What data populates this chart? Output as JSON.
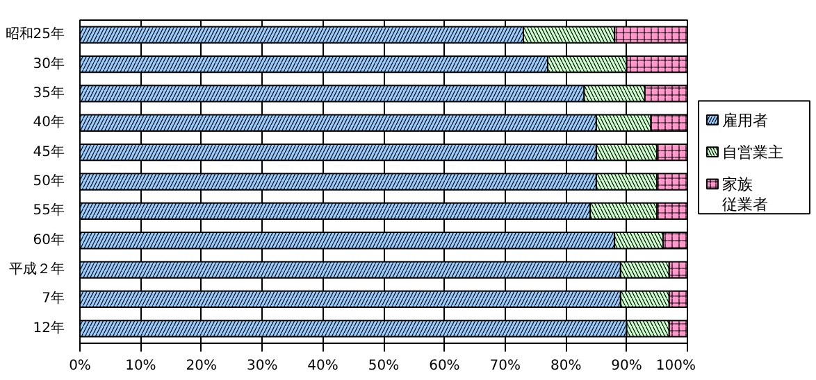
{
  "chart_data": {
    "type": "bar",
    "orientation": "horizontal",
    "stacked": true,
    "categories": [
      "昭和25年",
      "30年",
      "35年",
      "40年",
      "45年",
      "50年",
      "55年",
      "60年",
      "平成２年",
      "7年",
      "12年"
    ],
    "series": [
      {
        "name": "雇用者",
        "color": "#99ccff",
        "values": [
          73,
          77,
          83,
          85,
          85,
          85,
          84,
          88,
          89,
          89,
          90
        ]
      },
      {
        "name": "自営業主",
        "color": "#ccffcc",
        "values": [
          15,
          13,
          10,
          9,
          10,
          10,
          11,
          8,
          8,
          8,
          7
        ]
      },
      {
        "name": "家族従業者",
        "color": "#ff99cc",
        "values": [
          12,
          10,
          7,
          6,
          5,
          5,
          5,
          4,
          3,
          3,
          3
        ]
      }
    ],
    "xlim": [
      0,
      100
    ],
    "xticks": [
      {
        "value": 0,
        "label": "0%"
      },
      {
        "value": 10,
        "label": "10%"
      },
      {
        "value": 20,
        "label": "20%"
      },
      {
        "value": 30,
        "label": "30%"
      },
      {
        "value": 40,
        "label": "40%"
      },
      {
        "value": 50,
        "label": "50%"
      },
      {
        "value": 60,
        "label": "60%"
      },
      {
        "value": 70,
        "label": "70%"
      },
      {
        "value": 80,
        "label": "80%"
      },
      {
        "value": 90,
        "label": "90%"
      },
      {
        "value": 100,
        "label": "100%"
      }
    ],
    "grid": "x",
    "legend": "right"
  }
}
